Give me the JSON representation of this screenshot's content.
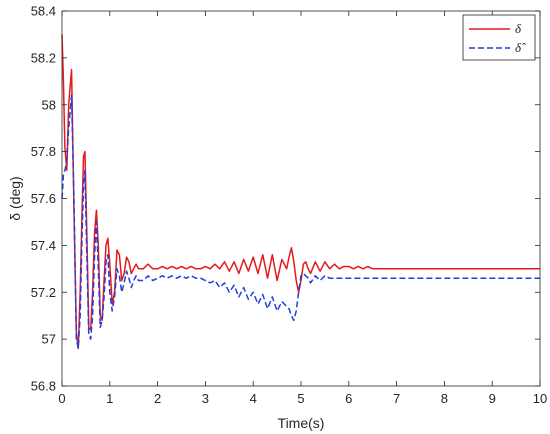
{
  "chart_data": {
    "type": "line",
    "xlabel": "Time(s)",
    "ylabel": "δ (deg)",
    "xlim": [
      0,
      10
    ],
    "ylim": [
      56.8,
      58.4
    ],
    "xticks": [
      0,
      1,
      2,
      3,
      4,
      5,
      6,
      7,
      8,
      9,
      10
    ],
    "yticks": [
      56.8,
      57,
      57.2,
      57.4,
      57.6,
      57.8,
      58,
      58.2,
      58.4
    ],
    "grid": false,
    "legend_position": "top-right",
    "series": [
      {
        "name": "δ",
        "color": "#e41a1c",
        "style": "solid",
        "x": [
          0,
          0.03,
          0.06,
          0.1,
          0.14,
          0.2,
          0.25,
          0.3,
          0.34,
          0.38,
          0.42,
          0.45,
          0.48,
          0.52,
          0.56,
          0.6,
          0.64,
          0.68,
          0.72,
          0.76,
          0.8,
          0.84,
          0.88,
          0.92,
          0.96,
          1.0,
          1.05,
          1.1,
          1.15,
          1.2,
          1.25,
          1.3,
          1.35,
          1.4,
          1.45,
          1.5,
          1.55,
          1.6,
          1.7,
          1.8,
          1.9,
          2.0,
          2.1,
          2.2,
          2.3,
          2.4,
          2.5,
          2.6,
          2.7,
          2.8,
          2.9,
          3.0,
          3.1,
          3.2,
          3.3,
          3.4,
          3.5,
          3.6,
          3.7,
          3.8,
          3.9,
          4.0,
          4.1,
          4.2,
          4.3,
          4.4,
          4.5,
          4.6,
          4.7,
          4.75,
          4.8,
          4.85,
          4.9,
          4.95,
          5.0,
          5.05,
          5.1,
          5.15,
          5.2,
          5.3,
          5.4,
          5.5,
          5.6,
          5.7,
          5.8,
          5.9,
          6.0,
          6.1,
          6.2,
          6.3,
          6.4,
          6.5,
          6.6,
          6.7,
          6.8,
          7.0,
          8.0,
          9.0,
          10.0
        ],
        "y": [
          58.3,
          58.1,
          57.82,
          57.72,
          58.0,
          58.15,
          57.55,
          57.03,
          56.96,
          57.2,
          57.55,
          57.78,
          57.8,
          57.45,
          57.05,
          57.04,
          57.2,
          57.45,
          57.55,
          57.4,
          57.1,
          57.08,
          57.25,
          57.4,
          57.43,
          57.32,
          57.15,
          57.2,
          57.38,
          57.36,
          57.25,
          57.28,
          57.35,
          57.33,
          57.28,
          57.3,
          57.32,
          57.3,
          57.3,
          57.32,
          57.3,
          57.3,
          57.31,
          57.3,
          57.31,
          57.3,
          57.31,
          57.3,
          57.31,
          57.3,
          57.3,
          57.31,
          57.3,
          57.32,
          57.3,
          57.33,
          57.29,
          57.33,
          57.28,
          57.34,
          57.29,
          57.35,
          57.28,
          57.36,
          57.26,
          57.36,
          57.25,
          57.34,
          57.3,
          57.35,
          57.39,
          57.33,
          57.25,
          57.2,
          57.25,
          57.32,
          57.33,
          57.3,
          57.28,
          57.33,
          57.29,
          57.33,
          57.3,
          57.32,
          57.3,
          57.31,
          57.31,
          57.3,
          57.31,
          57.3,
          57.31,
          57.3,
          57.3,
          57.3,
          57.3,
          57.3,
          57.3,
          57.3,
          57.3
        ]
      },
      {
        "name": "δ̂",
        "color": "#1f3fdf",
        "style": "dashed",
        "x": [
          0,
          0.03,
          0.06,
          0.1,
          0.14,
          0.2,
          0.25,
          0.3,
          0.34,
          0.38,
          0.42,
          0.45,
          0.48,
          0.52,
          0.56,
          0.6,
          0.64,
          0.68,
          0.72,
          0.76,
          0.8,
          0.84,
          0.88,
          0.92,
          0.96,
          1.0,
          1.05,
          1.1,
          1.15,
          1.2,
          1.25,
          1.3,
          1.35,
          1.4,
          1.45,
          1.5,
          1.55,
          1.6,
          1.7,
          1.8,
          1.9,
          2.0,
          2.1,
          2.2,
          2.3,
          2.4,
          2.5,
          2.6,
          2.7,
          2.8,
          2.9,
          3.0,
          3.1,
          3.2,
          3.3,
          3.4,
          3.5,
          3.6,
          3.7,
          3.8,
          3.9,
          4.0,
          4.1,
          4.2,
          4.3,
          4.4,
          4.5,
          4.6,
          4.7,
          4.75,
          4.8,
          4.85,
          4.9,
          4.95,
          5.0,
          5.05,
          5.1,
          5.15,
          5.2,
          5.3,
          5.4,
          5.5,
          5.6,
          5.7,
          5.8,
          5.9,
          6.0,
          6.1,
          6.2,
          6.3,
          6.4,
          6.5,
          6.6,
          6.7,
          6.8,
          7.0,
          8.0,
          9.0,
          10.0
        ],
        "y": [
          57.6,
          57.7,
          57.72,
          57.76,
          57.9,
          58.04,
          57.6,
          57.0,
          56.96,
          57.1,
          57.45,
          57.65,
          57.72,
          57.35,
          57.02,
          57.0,
          57.1,
          57.35,
          57.5,
          57.3,
          57.05,
          57.08,
          57.18,
          57.33,
          57.36,
          57.2,
          57.12,
          57.18,
          57.3,
          57.27,
          57.2,
          57.24,
          57.29,
          57.26,
          57.22,
          57.25,
          57.27,
          57.25,
          57.25,
          57.27,
          57.25,
          57.26,
          57.27,
          57.26,
          57.27,
          57.26,
          57.27,
          57.26,
          57.27,
          57.26,
          57.26,
          57.25,
          57.24,
          57.25,
          57.22,
          57.24,
          57.2,
          57.23,
          57.18,
          57.22,
          57.17,
          57.2,
          57.15,
          57.19,
          57.13,
          57.18,
          57.12,
          57.16,
          57.14,
          57.13,
          57.1,
          57.08,
          57.12,
          57.2,
          57.27,
          57.28,
          57.27,
          57.26,
          57.24,
          57.27,
          57.25,
          57.27,
          57.26,
          57.26,
          57.26,
          57.26,
          57.26,
          57.26,
          57.26,
          57.26,
          57.26,
          57.26,
          57.26,
          57.26,
          57.26,
          57.26,
          57.26,
          57.26,
          57.26
        ]
      }
    ]
  }
}
